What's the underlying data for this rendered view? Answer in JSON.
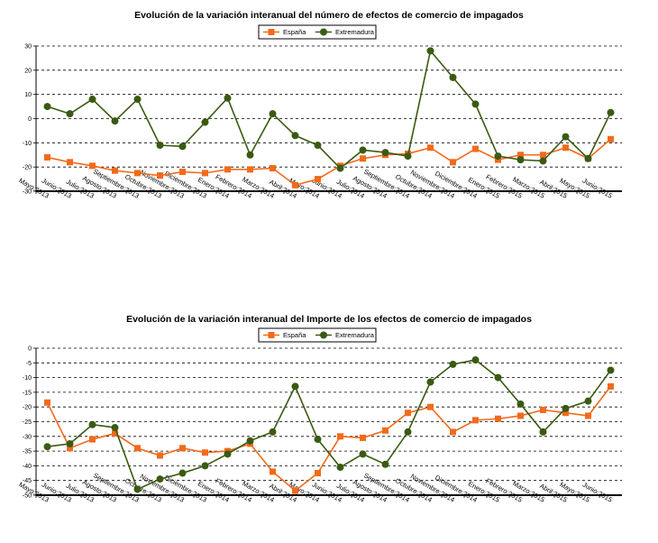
{
  "colors": {
    "espana": "#f26a1b",
    "extremadura": "#3a5a12",
    "axis": "#000000",
    "grid": "#000000"
  },
  "chart_data": [
    {
      "type": "line",
      "title": "Evolución de la variación interanual del número de  efectos de comercio de impagados",
      "legend": {
        "position": "top-center",
        "entries": [
          "España",
          "Extremadura"
        ]
      },
      "grid": "horizontal-dashed",
      "ylim": [
        -30,
        30
      ],
      "yticks": [
        "30",
        "20",
        "10",
        "0",
        "-10",
        "-20",
        "-30"
      ],
      "ytick_values": [
        30,
        20,
        10,
        0,
        -10,
        -20,
        -30
      ],
      "categories": [
        "Mayo:2013",
        "Junio:2013",
        "Julio:2013",
        "Agosto:2013",
        "Septiembre:2013",
        "Octubre:2013",
        "Noviembre:2013",
        "Diciembre:2013",
        "Enero:2014",
        "Febrero:2014",
        "Marzo:2014",
        "Abril:2014",
        "Mayo:2014",
        "Junio:2014",
        "Julio:2014",
        "Agosto:2014",
        "Septiembre:2014",
        "Octubre:2014",
        "Noviembre:2014",
        "Diciembre:2014",
        "Enero:2015",
        "Febrero:2015",
        "Marzo:2015",
        "Abril:2015",
        "Mayo:2015",
        "Junio:2015"
      ],
      "series": [
        {
          "name": "España",
          "marker": "square",
          "values": [
            -16,
            -18,
            -19.5,
            -21.5,
            -22.5,
            -23.5,
            -22,
            -22.5,
            -21,
            -21,
            -20.5,
            -27.5,
            -25,
            -19.5,
            -16.5,
            -15,
            -14.5,
            -12,
            -18,
            -12.5,
            -17,
            -15,
            -15,
            -12,
            -16.5,
            -8.5
          ]
        },
        {
          "name": "Extremadura",
          "marker": "circle",
          "values": [
            5,
            2,
            8,
            -1,
            8,
            -11,
            -11.5,
            -1.5,
            8.5,
            -15,
            2,
            -7,
            -11,
            -20.5,
            -13,
            -14,
            -15.5,
            28,
            17,
            6,
            -15.5,
            -17,
            -17.5,
            -7.5,
            -16.5,
            2.5
          ]
        }
      ]
    },
    {
      "type": "line",
      "title": "Evolución de la variación interanual del Importe de los efectos de comercio de impagados",
      "legend": {
        "position": "top-center",
        "entries": [
          "España",
          "Extremadura"
        ]
      },
      "grid": "horizontal-dashed",
      "ylim": [
        -50,
        0
      ],
      "yticks": [
        "0",
        "-5",
        "-10",
        "-15",
        "-20",
        "-25",
        "-30",
        "-35",
        "-40",
        "-45",
        "-50"
      ],
      "ytick_values": [
        0,
        -5,
        -10,
        -15,
        -20,
        -25,
        -30,
        -35,
        -40,
        -45,
        -50
      ],
      "categories": [
        "Mayo:2013",
        "Junio:2013",
        "Julio:2013",
        "Agosto:2013",
        "Septiembre:2013",
        "Octubre:2013",
        "Noviembre:2013",
        "Diciembre:2013",
        "Enero:2014",
        "Febrero:2014",
        "Marzo:2014",
        "Abril:2014",
        "Mayo:2014",
        "Junio:2014",
        "Julio:2014",
        "Agosto:2014",
        "Septiembre:2014",
        "Octubre:2014",
        "Noviembre:2014",
        "Diciembre:2014",
        "Enero:2015",
        "Febrero:2015",
        "Marzo:2015",
        "Abril:2015",
        "Mayo:2015",
        "Junio:2015"
      ],
      "series": [
        {
          "name": "España",
          "marker": "square",
          "values": [
            -18.5,
            -34,
            -31,
            -29,
            -34,
            -36.5,
            -34,
            -35.5,
            -35,
            -32.5,
            -42,
            -48.5,
            -42.5,
            -30,
            -30.5,
            -28,
            -22,
            -20,
            -28.5,
            -24.5,
            -24,
            -23,
            -21,
            -22,
            -23,
            -13
          ]
        },
        {
          "name": "Extremadura",
          "marker": "circle",
          "values": [
            -33.5,
            -32.5,
            -26,
            -27,
            -48,
            -44.5,
            -42.5,
            -40,
            -36,
            -31.5,
            -28.5,
            -13,
            -31,
            -40.5,
            -36,
            -39.5,
            -28.5,
            -11.5,
            -5.5,
            -4,
            -10,
            -19,
            -28.5,
            -20.5,
            -18,
            -7.5
          ]
        }
      ]
    }
  ]
}
